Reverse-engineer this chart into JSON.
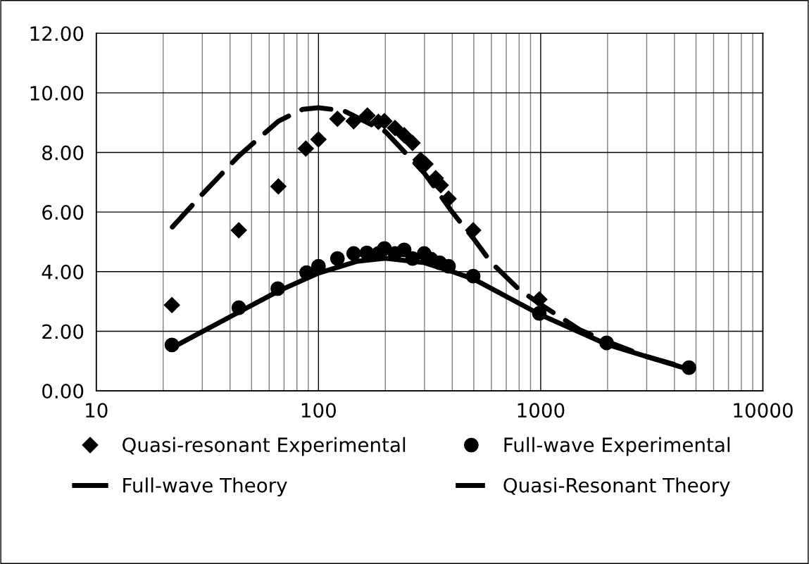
{
  "chart_data": {
    "type": "scatter",
    "log": "x",
    "grid": true,
    "legend": "bottom",
    "xlim": [
      10,
      10000
    ],
    "xticks": [
      10,
      100,
      1000,
      10000
    ],
    "ylim": [
      0,
      12
    ],
    "yticks": [
      {
        "value": 0,
        "label": "0.00"
      },
      {
        "value": 2,
        "label": "2.00"
      },
      {
        "value": 4,
        "label": "4.00"
      },
      {
        "value": 6,
        "label": "6.00"
      },
      {
        "value": 8,
        "label": "8.00"
      },
      {
        "value": 10,
        "label": "10.00"
      },
      {
        "value": 12,
        "label": "12.00"
      }
    ],
    "series": [
      {
        "name": "Quasi-resonant Experimental",
        "marker": "diamond",
        "color": "#000000",
        "x": [
          21.9,
          43.8,
          66,
          87.7,
          100,
          121.7,
          144,
          166,
          186,
          198,
          221,
          243,
          265,
          288,
          303,
          337,
          355,
          385,
          497,
          986
        ],
        "values": [
          2.88,
          5.39,
          6.86,
          8.13,
          8.44,
          9.13,
          9.05,
          9.24,
          9.03,
          9.05,
          8.82,
          8.58,
          8.32,
          7.75,
          7.61,
          7.14,
          6.9,
          6.45,
          5.39,
          3.07
        ]
      },
      {
        "name": "Full-wave Experimental",
        "marker": "circle",
        "color": "#000000",
        "x": [
          21.9,
          43.8,
          65.6,
          88.4,
          100,
          121.7,
          144,
          165,
          186,
          198,
          221,
          243,
          265,
          299,
          321,
          351,
          385,
          497,
          986,
          1980,
          4650
        ],
        "values": [
          1.54,
          2.79,
          3.43,
          3.97,
          4.18,
          4.44,
          4.61,
          4.63,
          4.61,
          4.78,
          4.61,
          4.73,
          4.44,
          4.61,
          4.42,
          4.3,
          4.18,
          3.85,
          2.6,
          1.61,
          0.78
        ]
      },
      {
        "name": "Full-wave Theory",
        "type": "line",
        "line_style": "solid",
        "color": "#000000",
        "x": [
          22,
          44,
          66,
          100,
          150,
          200,
          300,
          400,
          500,
          1000,
          2000,
          4650
        ],
        "values": [
          1.45,
          2.65,
          3.35,
          3.95,
          4.35,
          4.45,
          4.3,
          4.0,
          3.75,
          2.55,
          1.55,
          0.72
        ]
      },
      {
        "name": "Quasi-Resonant Theory",
        "type": "line",
        "line_style": "dashed",
        "color": "#000000",
        "x": [
          22,
          30,
          44,
          66,
          85,
          100,
          130,
          200,
          300,
          400,
          500,
          600,
          800,
          1000,
          1500,
          2000,
          3000,
          4650
        ],
        "values": [
          5.5,
          6.6,
          7.9,
          9.05,
          9.45,
          9.5,
          9.4,
          8.7,
          7.3,
          6.0,
          5.1,
          4.3,
          3.4,
          2.9,
          2.05,
          1.65,
          1.15,
          0.75
        ]
      }
    ]
  }
}
